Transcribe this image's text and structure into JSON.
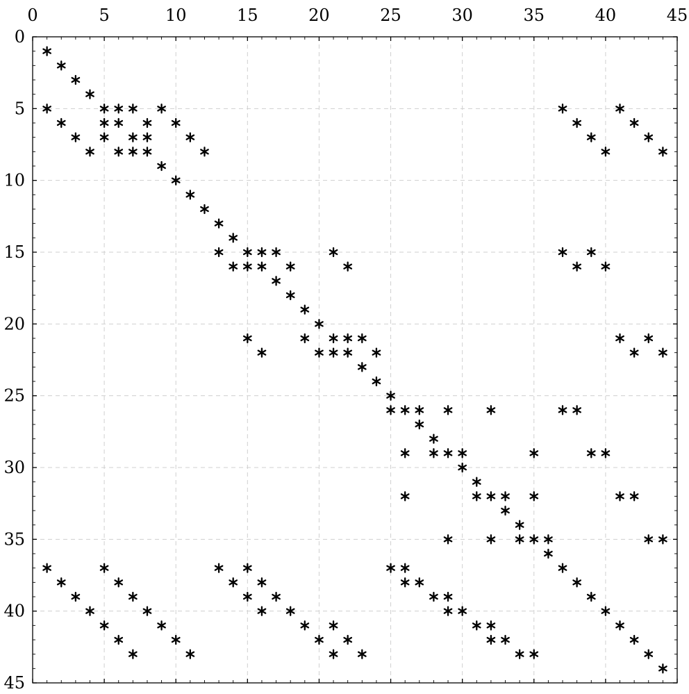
{
  "chart_data": {
    "type": "scatter",
    "title": "",
    "xlabel": "",
    "ylabel": "",
    "xlim": [
      0,
      45
    ],
    "ylim": [
      0,
      45
    ],
    "y_axis_inverted": true,
    "x_axis_position": "top",
    "grid": true,
    "marker": "asterisk",
    "marker_color": "#000000",
    "grid_color": "#cfcfcf",
    "x_ticks": [
      0,
      5,
      10,
      15,
      20,
      25,
      30,
      35,
      40,
      45
    ],
    "y_ticks": [
      0,
      5,
      10,
      15,
      20,
      25,
      30,
      35,
      40,
      45
    ],
    "x_tick_labels": [
      "0",
      "5",
      "10",
      "15",
      "20",
      "25",
      "30",
      "35",
      "40",
      "45"
    ],
    "y_tick_labels": [
      "0",
      "5",
      "10",
      "15",
      "20",
      "25",
      "30",
      "35",
      "40",
      "45"
    ],
    "points": [
      [
        1,
        1
      ],
      [
        2,
        2
      ],
      [
        3,
        3
      ],
      [
        4,
        4
      ],
      [
        1,
        5
      ],
      [
        5,
        5
      ],
      [
        6,
        5
      ],
      [
        7,
        5
      ],
      [
        9,
        5
      ],
      [
        37,
        5
      ],
      [
        41,
        5
      ],
      [
        2,
        6
      ],
      [
        5,
        6
      ],
      [
        6,
        6
      ],
      [
        8,
        6
      ],
      [
        10,
        6
      ],
      [
        38,
        6
      ],
      [
        42,
        6
      ],
      [
        3,
        7
      ],
      [
        5,
        7
      ],
      [
        7,
        7
      ],
      [
        8,
        7
      ],
      [
        11,
        7
      ],
      [
        39,
        7
      ],
      [
        43,
        7
      ],
      [
        4,
        8
      ],
      [
        6,
        8
      ],
      [
        7,
        8
      ],
      [
        8,
        8
      ],
      [
        12,
        8
      ],
      [
        40,
        8
      ],
      [
        44,
        8
      ],
      [
        9,
        9
      ],
      [
        10,
        10
      ],
      [
        11,
        11
      ],
      [
        12,
        12
      ],
      [
        13,
        13
      ],
      [
        14,
        14
      ],
      [
        13,
        15
      ],
      [
        15,
        15
      ],
      [
        16,
        15
      ],
      [
        17,
        15
      ],
      [
        21,
        15
      ],
      [
        37,
        15
      ],
      [
        39,
        15
      ],
      [
        14,
        16
      ],
      [
        15,
        16
      ],
      [
        16,
        16
      ],
      [
        18,
        16
      ],
      [
        22,
        16
      ],
      [
        38,
        16
      ],
      [
        40,
        16
      ],
      [
        17,
        17
      ],
      [
        18,
        18
      ],
      [
        19,
        19
      ],
      [
        20,
        20
      ],
      [
        15,
        21
      ],
      [
        19,
        21
      ],
      [
        21,
        21
      ],
      [
        22,
        21
      ],
      [
        23,
        21
      ],
      [
        41,
        21
      ],
      [
        43,
        21
      ],
      [
        16,
        22
      ],
      [
        20,
        22
      ],
      [
        21,
        22
      ],
      [
        22,
        22
      ],
      [
        24,
        22
      ],
      [
        42,
        22
      ],
      [
        44,
        22
      ],
      [
        23,
        23
      ],
      [
        24,
        24
      ],
      [
        25,
        25
      ],
      [
        25,
        26
      ],
      [
        26,
        26
      ],
      [
        27,
        26
      ],
      [
        29,
        26
      ],
      [
        32,
        26
      ],
      [
        37,
        26
      ],
      [
        38,
        26
      ],
      [
        27,
        27
      ],
      [
        28,
        28
      ],
      [
        26,
        29
      ],
      [
        28,
        29
      ],
      [
        29,
        29
      ],
      [
        30,
        29
      ],
      [
        35,
        29
      ],
      [
        39,
        29
      ],
      [
        40,
        29
      ],
      [
        30,
        30
      ],
      [
        31,
        31
      ],
      [
        26,
        32
      ],
      [
        31,
        32
      ],
      [
        32,
        32
      ],
      [
        33,
        32
      ],
      [
        35,
        32
      ],
      [
        41,
        32
      ],
      [
        42,
        32
      ],
      [
        33,
        33
      ],
      [
        34,
        34
      ],
      [
        29,
        35
      ],
      [
        32,
        35
      ],
      [
        34,
        35
      ],
      [
        35,
        35
      ],
      [
        36,
        35
      ],
      [
        43,
        35
      ],
      [
        44,
        35
      ],
      [
        36,
        36
      ],
      [
        1,
        37
      ],
      [
        5,
        37
      ],
      [
        13,
        37
      ],
      [
        15,
        37
      ],
      [
        25,
        37
      ],
      [
        26,
        37
      ],
      [
        37,
        37
      ],
      [
        2,
        38
      ],
      [
        6,
        38
      ],
      [
        14,
        38
      ],
      [
        16,
        38
      ],
      [
        26,
        38
      ],
      [
        27,
        38
      ],
      [
        38,
        38
      ],
      [
        3,
        39
      ],
      [
        7,
        39
      ],
      [
        15,
        39
      ],
      [
        17,
        39
      ],
      [
        28,
        39
      ],
      [
        29,
        39
      ],
      [
        39,
        39
      ],
      [
        4,
        40
      ],
      [
        8,
        40
      ],
      [
        16,
        40
      ],
      [
        18,
        40
      ],
      [
        29,
        40
      ],
      [
        30,
        40
      ],
      [
        40,
        40
      ],
      [
        5,
        41
      ],
      [
        9,
        41
      ],
      [
        19,
        41
      ],
      [
        21,
        41
      ],
      [
        31,
        41
      ],
      [
        32,
        41
      ],
      [
        41,
        41
      ],
      [
        6,
        42
      ],
      [
        10,
        42
      ],
      [
        20,
        42
      ],
      [
        22,
        42
      ],
      [
        32,
        42
      ],
      [
        33,
        42
      ],
      [
        42,
        42
      ],
      [
        7,
        43
      ],
      [
        11,
        43
      ],
      [
        21,
        43
      ],
      [
        23,
        43
      ],
      [
        34,
        43
      ],
      [
        35,
        43
      ],
      [
        43,
        43
      ],
      [
        44,
        44
      ]
    ]
  }
}
